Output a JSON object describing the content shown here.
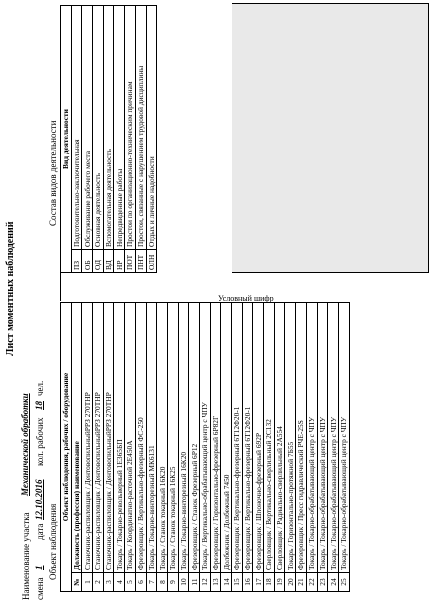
{
  "header": {
    "title": "Лист моментных наблюдений",
    "area_label": "Наименование участка",
    "area_value": "Механической обработки",
    "shift_label": "смена",
    "shift_value": "1",
    "date_label": "дата",
    "date_value": "12.10.2016",
    "workers_label": "кол. рабочих",
    "workers_value": "18",
    "workers_unit": "чел.",
    "object_label": "Объект наблюдения",
    "activities_label": "Состав видов деятельности"
  },
  "left_table": {
    "header_row1": "Объект наблюдения, рабочих / оборудование",
    "col_num": "№",
    "col_name": "Должность (профессия) наименование",
    "rows": [
      {
        "num": "1",
        "text": "Станочник-распиловщик / ДентовопильныйРРЗ 270ТНР"
      },
      {
        "num": "2",
        "text": "Станочник-распиловщик / ДентовопильныйРРЗ 270ТНР"
      },
      {
        "num": "3",
        "text": "Станочник-распиловщик / ДентовопильныйРРЗ 270ТНР"
      },
      {
        "num": "4",
        "text": "Токарь / Токарно-револьверный 1Е365БП"
      },
      {
        "num": "5",
        "text": "Токарь / Координатно-расточной 2Е450А"
      },
      {
        "num": "6",
        "text": "Фрезеровщик / Вертикально-фрезерный ФС-250"
      },
      {
        "num": "7",
        "text": "Токарь / Токарно-винторезный МК6131"
      },
      {
        "num": "8",
        "text": "Токарь / Станок токарный 16К20"
      },
      {
        "num": "9",
        "text": "Токарь / Станок токарный 16К25"
      },
      {
        "num": "10",
        "text": "Токарь / Токарно-винторезный 16К20"
      },
      {
        "num": "11",
        "text": "Фрезеровщик / Станок Фрезерный 6Р12"
      },
      {
        "num": "12",
        "text": "Токарь / Вертикально-обрабатывающий центр с ЧПУ"
      },
      {
        "num": "13",
        "text": "Фрезеровщик / Горизонтально-фрезерный 6Р82Г"
      },
      {
        "num": "14",
        "text": "Долбежник / Долбежный 7450"
      },
      {
        "num": "15",
        "text": "Фрезеровщик / Вертикально-фрезерный 6Т12Ф20-1"
      },
      {
        "num": "16",
        "text": "Фрезеровщик / Вертикально-фрезерный 6Т12Ф20-1"
      },
      {
        "num": "17",
        "text": "Фрезеровщик / Шпоночно-фрезерный 692Р"
      },
      {
        "num": "18",
        "text": "Сверловщик / Вертикально-сверлильный 2С132"
      },
      {
        "num": "19",
        "text": "Сверловщик / Радиально-сверлильный 2А554"
      },
      {
        "num": "20",
        "text": "Токарь / Горизонтально-протяжной 7Б55"
      },
      {
        "num": "21",
        "text": "Фрезеровщик / Пресс гидравлический РЧЕ-25S"
      },
      {
        "num": "22",
        "text": "Токарь / Токарно-обрабатывающий центр с ЧПУ"
      },
      {
        "num": "23",
        "text": "Токарь / Токарно-обрабатывающий центр с ЧПУ"
      },
      {
        "num": "24",
        "text": "Токарь / Токарно-обрабатывающий центр с ЧПУ"
      },
      {
        "num": "25",
        "text": "Токарь / Токарно-обрабатывающий центр с ЧПУ"
      }
    ]
  },
  "side_label": "Условный шифр",
  "code_table": {
    "header": "Вид деятельности",
    "rows": [
      {
        "code": "ПЗ",
        "text": "Подготовительно-заключительная"
      },
      {
        "code": "ОБ",
        "text": "Обслуживание рабочего места"
      },
      {
        "code": "ОД",
        "text": "Основная деятельность"
      },
      {
        "code": "ВД",
        "text": "Вспомогательная деятельность"
      },
      {
        "code": "НР",
        "text": "Непредвиденные работы"
      },
      {
        "code": "ПОТ",
        "text": "Простои по организационно-техническим причинам"
      },
      {
        "code": "ПНТ",
        "text": "Простои, связанные с нарушением трудовой дисциплины"
      },
      {
        "code": "ОЛН",
        "text": "Отдых и личные надобности"
      }
    ]
  }
}
